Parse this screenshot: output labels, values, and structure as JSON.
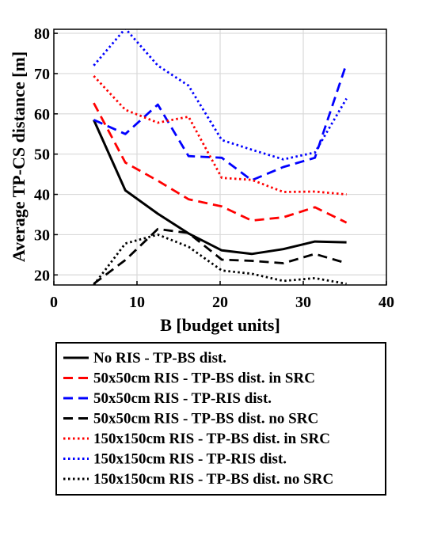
{
  "chart_data": {
    "type": "line",
    "title": "",
    "xlabel": "B [budget units]",
    "ylabel": "Average TP-CS distance [m]",
    "xlim": [
      0,
      40
    ],
    "ylim": [
      17.5,
      81
    ],
    "xticks": [
      0,
      10,
      20,
      30,
      40
    ],
    "yticks": [
      20,
      30,
      40,
      50,
      60,
      70,
      80
    ],
    "grid": true,
    "legend_position": "below",
    "x": [
      4.8,
      8.6,
      12.5,
      16.2,
      20.2,
      23.8,
      27.6,
      31.4,
      35.2
    ],
    "series": [
      {
        "name": "No RIS - TP-BS dist.",
        "color": "#000000",
        "dash": "solid",
        "values": [
          58.5,
          41,
          35.2,
          30.3,
          26.1,
          25.2,
          26.4,
          28.3,
          28.1
        ]
      },
      {
        "name": "50x50cm RIS - TP-BS dist. in SRC",
        "color": "#ff0000",
        "dash": "dashed",
        "values": [
          62.7,
          47.9,
          43.4,
          38.8,
          37,
          33.5,
          34.3,
          36.8,
          33
        ]
      },
      {
        "name": "50x50cm RIS - TP-RIS dist.",
        "color": "#0000ff",
        "dash": "dashed",
        "values": [
          58.5,
          55,
          62.3,
          49.5,
          49.1,
          43.5,
          46.8,
          49.1,
          72.5
        ]
      },
      {
        "name": "50x50cm RIS - TP-BS dist. no SRC",
        "color": "#000000",
        "dash": "dashed",
        "values": [
          17.8,
          23.7,
          31.4,
          30.4,
          23.8,
          23.5,
          22.9,
          25.2,
          22.9
        ]
      },
      {
        "name": "150x150cm RIS - TP-BS dist. in SRC",
        "color": "#ff0000",
        "dash": "dotted",
        "values": [
          69.4,
          61,
          57.8,
          59.3,
          44.1,
          43.6,
          40.6,
          40.7,
          40
        ]
      },
      {
        "name": "150x150cm RIS - TP-RIS dist.",
        "color": "#0000ff",
        "dash": "dotted",
        "values": [
          72,
          81.2,
          72,
          67,
          53.5,
          51.1,
          48.7,
          50.4,
          63.8
        ]
      },
      {
        "name": "150x150cm RIS - TP-BS dist. no SRC",
        "color": "#000000",
        "dash": "dotted",
        "values": [
          17.5,
          27.8,
          30,
          27,
          21.1,
          20.3,
          18.5,
          19.2,
          17.8
        ]
      }
    ]
  }
}
